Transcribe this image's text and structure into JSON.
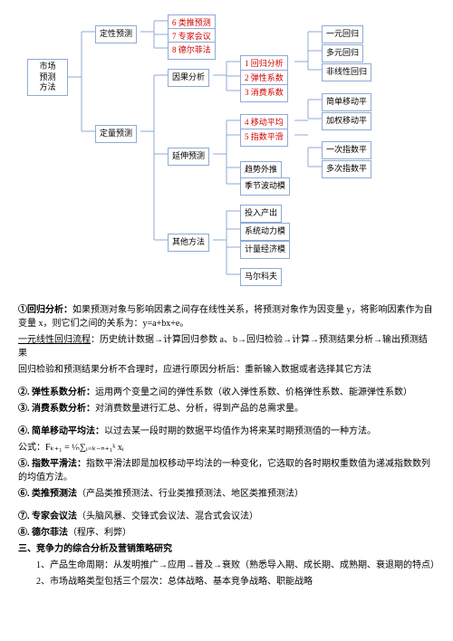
{
  "diagram": {
    "root": "市场\n预测\n方法",
    "l1": {
      "a": "定性预测",
      "b": "定量预测"
    },
    "l2": {
      "a": "6 类推预测",
      "b": "7 专家会议",
      "c": "8 德尔菲法",
      "d": "因果分析",
      "e": "延伸预测",
      "f": "其他方法"
    },
    "l3": {
      "a": "1 回归分析",
      "b": "2 弹性系数",
      "c": "3 消费系数",
      "d": "4 移动平均",
      "e": "5 指数平滑",
      "f": "趋势外推",
      "g": "季节波动模",
      "h": "投入产出",
      "i": "系统动力模",
      "j": "计量经济模",
      "k": "马尔科夫"
    },
    "l4": {
      "a": "一元回归",
      "b": "多元回归",
      "c": "非线性回归",
      "d": "简单移动平",
      "e": "加权移动平",
      "f": "一次指数平",
      "g": "多次指数平"
    }
  },
  "text": {
    "p1a": "①回归分析：",
    "p1b": "如果预测对象与影响因素之间存在线性关系，将预测对象作为因变量 y，将影响因素作为自变量 x，则它们之间的关系为：y=a+bx+e。",
    "p2a": "一元线性回归流程",
    "p2b": "：历史统计数据→计算回归参数 a、b→回归检验→计算→预测结果分析→输出预测结果",
    "p3": "回归检验和预测结果分析不合理时，应进行原因分析后：重新输入数据或者选择其它方法",
    "p4a": "②. 弹性系数分析：",
    "p4b": "运用两个变量之间的弹性系数（收入弹性系数、价格弹性系数、能源弹性系数）",
    "p5a": "③. 消费系数分析：",
    "p5b": "对消费数量进行汇总、分析，得到产品的总需求量。",
    "p6a": "④. 简单移动平均法：",
    "p6b": "以过去某一段时期的数据平均值作为将来某时期预测值的一种方法。",
    "p7": "公式：Fₖ₊₁ = ¹⁄ₙ∑ᵢ₌ₖ₋ₙ₊₁ᵏ xᵢ",
    "p8a": "⑤. 指数平滑法：",
    "p8b": "指数平滑法即是加权移动平均法的一种变化，它选取的各时期权重数值为递减指数数列的均值方法。",
    "p9a": "⑥. 类推预测法",
    "p9b": "（产品类推预测法、行业类推预测法、地区类推预测法）",
    "p10a": "⑦. 专家会议法",
    "p10b": "（头脑风暴、交锋式会议法、混合式会议法）",
    "p11a": "⑧. 德尔菲法",
    "p11b": "（程序、利弊）",
    "h2": "三、竞争力的综合分析及营销策略研究",
    "b1": "1、产品生命周期：从发明推广→应用→普及→衰败（熟悉导入期、成长期、成熟期、衰退期的特点）",
    "b2": "2、市场战略类型包括三个层次：总体战略、基本竞争战略、职能战略"
  }
}
